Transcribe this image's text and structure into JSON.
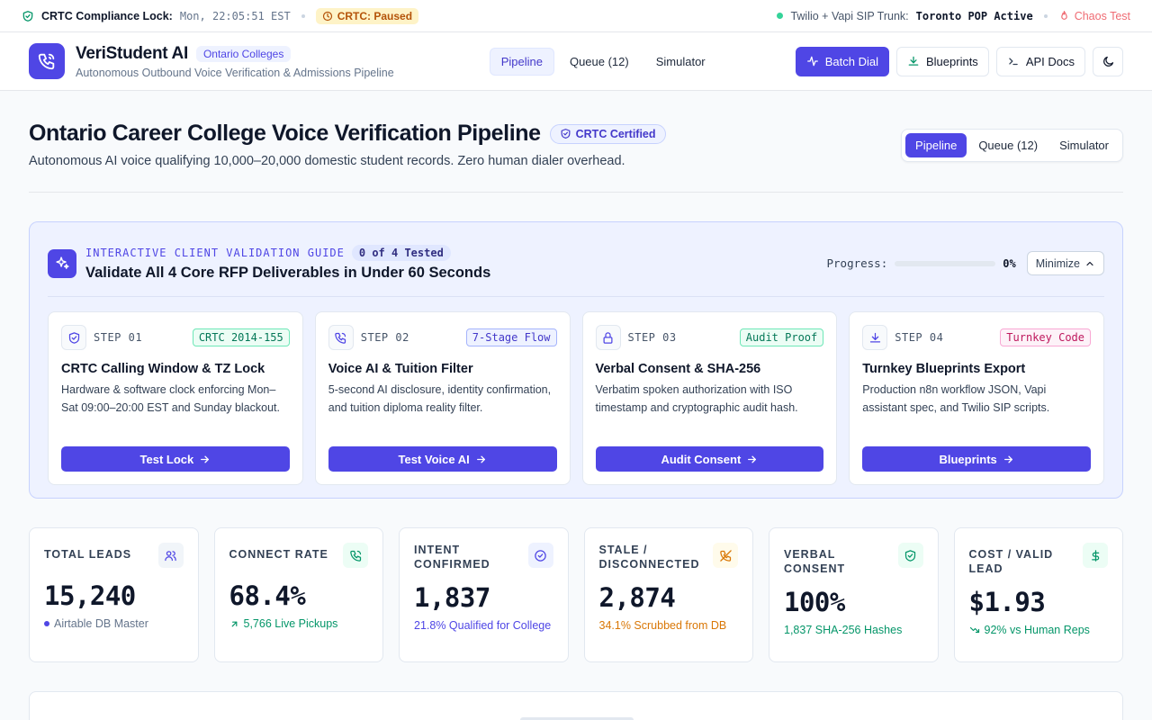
{
  "statusbar": {
    "lock_label": "CRTC Compliance Lock:",
    "clock": "Mon, 22:05:51 EST",
    "paused": "CRTC: Paused",
    "trunk_label": "Twilio + Vapi SIP Trunk:",
    "trunk_value": "Toronto POP Active",
    "chaos": "Chaos Test"
  },
  "header": {
    "brand": "VeriStudent AI",
    "badge": "Ontario Colleges",
    "subtitle": "Autonomous Outbound Voice Verification & Admissions Pipeline",
    "nav": [
      "Pipeline",
      "Queue (12)",
      "Simulator"
    ],
    "actions": {
      "batch": "Batch Dial",
      "blueprints": "Blueprints",
      "api": "API Docs"
    }
  },
  "page": {
    "title": "Ontario Career College Voice Verification Pipeline",
    "cert": "CRTC Certified",
    "subtitle": "Autonomous AI voice qualifying 10,000–20,000 domestic student records. Zero human dialer overhead.",
    "segments": [
      "Pipeline",
      "Queue (12)",
      "Simulator"
    ]
  },
  "guide": {
    "kicker": "INTERACTIVE CLIENT VALIDATION GUIDE",
    "tested": "0 of 4 Tested",
    "title": "Validate All 4 Core RFP Deliverables in Under 60 Seconds",
    "progress_label": "Progress:",
    "progress_value": 0,
    "progress_text": "0%",
    "minimize": "Minimize",
    "steps": [
      {
        "num": "STEP 01",
        "tag": "CRTC 2014-155",
        "title": "CRTC Calling Window & TZ Lock",
        "desc": "Hardware & software clock enforcing Mon–Sat 09:00–20:00 EST and Sunday blackout.",
        "button": "Test Lock"
      },
      {
        "num": "STEP 02",
        "tag": "7-Stage Flow",
        "title": "Voice AI & Tuition Filter",
        "desc": "5-second AI disclosure, identity confirmation, and tuition diploma reality filter.",
        "button": "Test Voice AI"
      },
      {
        "num": "STEP 03",
        "tag": "Audit Proof",
        "title": "Verbal Consent & SHA-256",
        "desc": "Verbatim spoken authorization with ISO timestamp and cryptographic audit hash.",
        "button": "Audit Consent"
      },
      {
        "num": "STEP 04",
        "tag": "Turnkey Code",
        "title": "Turnkey Blueprints Export",
        "desc": "Production n8n workflow JSON, Vapi assistant spec, and Twilio SIP scripts.",
        "button": "Blueprints"
      }
    ]
  },
  "metrics": [
    {
      "label": "TOTAL LEADS",
      "value": "15,240",
      "foot": "Airtable DB Master"
    },
    {
      "label": "CONNECT RATE",
      "value": "68.4%",
      "foot": "5,766 Live Pickups"
    },
    {
      "label": "INTENT CONFIRMED",
      "value": "1,837",
      "foot": "21.8% Qualified for College"
    },
    {
      "label": "STALE / DISCONNECTED",
      "value": "2,874",
      "foot": "34.1% Scrubbed from DB"
    },
    {
      "label": "VERBAL CONSENT",
      "value": "100%",
      "foot": "1,837 SHA-256 Hashes"
    },
    {
      "label": "COST / VALID LEAD",
      "value": "$1.93",
      "foot": "92% vs Human Reps"
    }
  ],
  "colors": {
    "accent": "#4f46e5",
    "success": "#059669",
    "warning": "#d97706",
    "danger": "#ef4444"
  }
}
